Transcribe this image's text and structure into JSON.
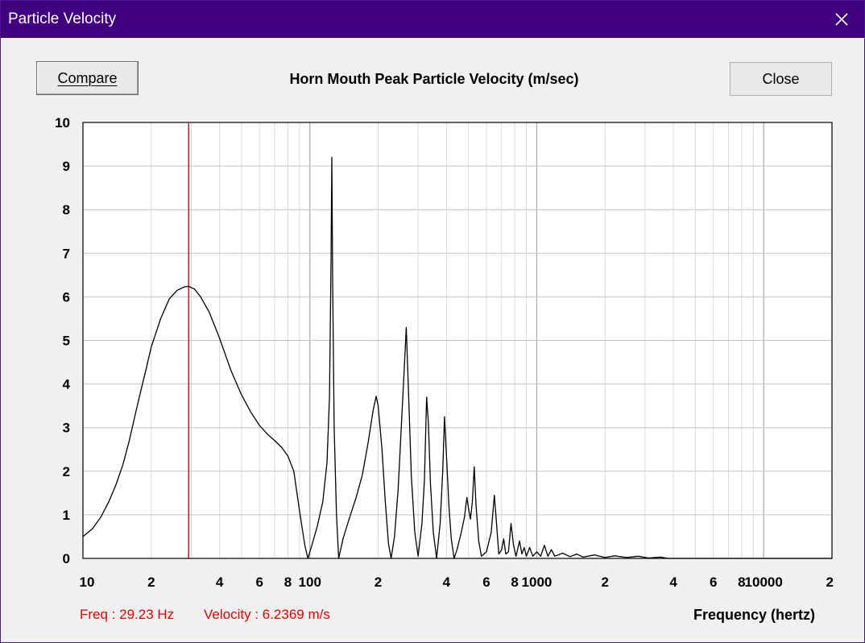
{
  "window": {
    "title": "Particle Velocity",
    "close_icon": "close-icon"
  },
  "toolbar": {
    "compare_label": "Compare",
    "close_label": "Close"
  },
  "readout": {
    "freq": "Freq : 29.23 Hz",
    "velocity": "Velocity : 6.2369 m/s"
  },
  "colors": {
    "titlebar": "#40007f",
    "curve": "#000000",
    "cursor": "#e00000",
    "grid": "#c8c8c8"
  },
  "chart_data": {
    "type": "line",
    "title": "Horn Mouth Peak Particle Velocity (m/sec)",
    "xlabel": "Frequency (hertz)",
    "ylabel": "",
    "xscale": "log",
    "xlim": [
      10,
      20000
    ],
    "ylim": [
      0,
      10
    ],
    "grid": true,
    "x_tick_labels": [
      "10",
      "2",
      "4",
      "6",
      "8",
      "100",
      "2",
      "4",
      "6",
      "8",
      "1000",
      "2",
      "4",
      "6",
      "8",
      "10000",
      "2"
    ],
    "y_tick_labels": [
      "0",
      "1",
      "2",
      "3",
      "4",
      "5",
      "6",
      "7",
      "8",
      "9",
      "10"
    ],
    "cursor": {
      "freq_hz": 29.23,
      "velocity": 6.2369
    },
    "series": [
      {
        "points": [
          [
            10,
            0.5
          ],
          [
            11,
            0.68
          ],
          [
            12,
            0.95
          ],
          [
            13,
            1.3
          ],
          [
            14,
            1.7
          ],
          [
            15,
            2.15
          ],
          [
            16,
            2.7
          ],
          [
            17,
            3.3
          ],
          [
            18,
            3.85
          ],
          [
            19,
            4.35
          ],
          [
            20,
            4.85
          ],
          [
            22,
            5.5
          ],
          [
            24,
            5.95
          ],
          [
            26,
            6.15
          ],
          [
            28,
            6.23
          ],
          [
            29.23,
            6.24
          ],
          [
            31,
            6.18
          ],
          [
            33,
            6.0
          ],
          [
            36,
            5.65
          ],
          [
            40,
            5.05
          ],
          [
            45,
            4.3
          ],
          [
            50,
            3.75
          ],
          [
            55,
            3.35
          ],
          [
            60,
            3.05
          ],
          [
            65,
            2.85
          ],
          [
            70,
            2.7
          ],
          [
            75,
            2.55
          ],
          [
            80,
            2.35
          ],
          [
            85,
            2.0
          ],
          [
            90,
            1.1
          ],
          [
            95,
            0.3
          ],
          [
            98,
            0.0
          ],
          [
            102,
            0.3
          ],
          [
            108,
            0.75
          ],
          [
            114,
            1.3
          ],
          [
            119,
            2.2
          ],
          [
            122,
            3.7
          ],
          [
            124,
            6.8
          ],
          [
            125,
            9.2
          ],
          [
            126,
            6.4
          ],
          [
            128,
            3.0
          ],
          [
            131,
            1.0
          ],
          [
            134,
            0.0
          ],
          [
            140,
            0.45
          ],
          [
            150,
            0.95
          ],
          [
            160,
            1.4
          ],
          [
            170,
            1.9
          ],
          [
            180,
            2.6
          ],
          [
            190,
            3.4
          ],
          [
            196,
            3.72
          ],
          [
            200,
            3.5
          ],
          [
            208,
            2.5
          ],
          [
            215,
            1.3
          ],
          [
            222,
            0.35
          ],
          [
            228,
            0.0
          ],
          [
            236,
            0.5
          ],
          [
            245,
            1.6
          ],
          [
            255,
            3.4
          ],
          [
            262,
            4.6
          ],
          [
            266,
            5.3
          ],
          [
            271,
            4.1
          ],
          [
            280,
            1.9
          ],
          [
            290,
            0.6
          ],
          [
            300,
            0.05
          ],
          [
            312,
            0.8
          ],
          [
            320,
            1.8
          ],
          [
            327,
            3.7
          ],
          [
            333,
            3.1
          ],
          [
            340,
            1.7
          ],
          [
            350,
            0.6
          ],
          [
            362,
            0.0
          ],
          [
            375,
            0.8
          ],
          [
            385,
            2.0
          ],
          [
            392,
            3.25
          ],
          [
            398,
            2.6
          ],
          [
            410,
            1.2
          ],
          [
            420,
            0.45
          ],
          [
            432,
            0.0
          ],
          [
            445,
            0.2
          ],
          [
            465,
            0.6
          ],
          [
            480,
            0.95
          ],
          [
            492,
            1.4
          ],
          [
            500,
            1.15
          ],
          [
            510,
            0.9
          ],
          [
            520,
            1.3
          ],
          [
            530,
            2.1
          ],
          [
            540,
            1.2
          ],
          [
            555,
            0.4
          ],
          [
            570,
            0.05
          ],
          [
            600,
            0.15
          ],
          [
            630,
            0.6
          ],
          [
            650,
            1.45
          ],
          [
            665,
            0.8
          ],
          [
            680,
            0.1
          ],
          [
            700,
            0.2
          ],
          [
            715,
            0.45
          ],
          [
            730,
            0.1
          ],
          [
            750,
            0.15
          ],
          [
            770,
            0.8
          ],
          [
            790,
            0.3
          ],
          [
            810,
            0.05
          ],
          [
            840,
            0.4
          ],
          [
            860,
            0.1
          ],
          [
            880,
            0.25
          ],
          [
            900,
            0.05
          ],
          [
            930,
            0.25
          ],
          [
            960,
            0.05
          ],
          [
            1000,
            0.15
          ],
          [
            1040,
            0.05
          ],
          [
            1080,
            0.3
          ],
          [
            1120,
            0.05
          ],
          [
            1160,
            0.2
          ],
          [
            1200,
            0.05
          ],
          [
            1300,
            0.12
          ],
          [
            1400,
            0.04
          ],
          [
            1500,
            0.1
          ],
          [
            1600,
            0.03
          ],
          [
            1800,
            0.08
          ],
          [
            2000,
            0.02
          ],
          [
            2200,
            0.06
          ],
          [
            2500,
            0.02
          ],
          [
            2800,
            0.05
          ],
          [
            3100,
            0.01
          ],
          [
            3500,
            0.03
          ],
          [
            3800,
            0.0
          ],
          [
            20000,
            0.0
          ]
        ]
      }
    ]
  }
}
